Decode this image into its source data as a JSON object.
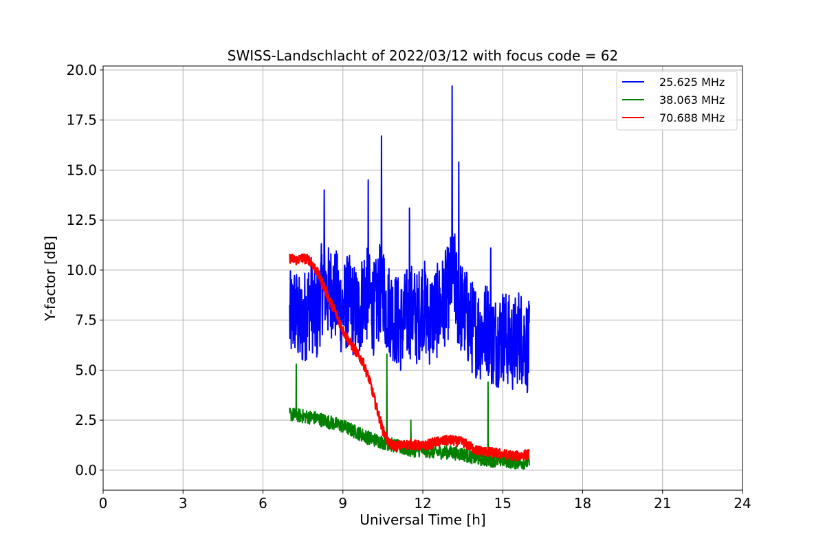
{
  "chart_data": {
    "type": "line",
    "title": "SWISS-Landschlacht of 2022/03/12 with focus code = 62",
    "xlabel": "Universal Time [h]",
    "ylabel": "Y-factor [dB]",
    "xlim": [
      0,
      24
    ],
    "ylim": [
      -1.0,
      20.2
    ],
    "xticks": [
      0,
      3,
      6,
      9,
      12,
      15,
      18,
      21,
      24
    ],
    "xtick_labels": [
      "0",
      "3",
      "6",
      "9",
      "12",
      "15",
      "18",
      "21",
      "24"
    ],
    "yticks": [
      0.0,
      2.5,
      5.0,
      7.5,
      10.0,
      12.5,
      15.0,
      17.5,
      20.0
    ],
    "ytick_labels": [
      "0.0",
      "2.5",
      "5.0",
      "7.5",
      "10.0",
      "12.5",
      "15.0",
      "17.5",
      "20.0"
    ],
    "grid": true,
    "legend_position": "top-right",
    "series": [
      {
        "name": "25.625 MHz",
        "color": "#0000ff",
        "x": [
          7.0,
          7.2,
          7.4,
          7.6,
          7.8,
          8.0,
          8.2,
          8.3,
          8.4,
          8.6,
          8.8,
          9.0,
          9.2,
          9.4,
          9.6,
          9.8,
          10.0,
          10.2,
          10.4,
          10.5,
          10.6,
          10.8,
          11.0,
          11.2,
          11.4,
          11.6,
          11.8,
          12.0,
          12.2,
          12.4,
          12.6,
          12.8,
          13.0,
          13.1,
          13.2,
          13.3,
          13.4,
          13.6,
          13.8,
          14.0,
          14.2,
          14.4,
          14.5,
          14.6,
          14.8,
          15.0,
          15.2,
          15.4,
          15.6,
          15.8,
          16.0
        ],
        "y": [
          7.5,
          8.0,
          7.2,
          7.8,
          8.5,
          7.5,
          9.0,
          9.5,
          8.8,
          9.0,
          8.5,
          8.0,
          8.5,
          8.0,
          7.8,
          9.0,
          8.5,
          8.0,
          9.0,
          9.5,
          8.2,
          8.0,
          7.5,
          7.2,
          7.8,
          8.0,
          7.5,
          8.5,
          7.5,
          7.8,
          8.0,
          8.5,
          9.0,
          10.0,
          9.5,
          8.5,
          8.2,
          7.8,
          7.2,
          7.0,
          6.8,
          7.2,
          7.0,
          6.5,
          6.5,
          6.8,
          6.5,
          6.2,
          6.8,
          6.5,
          6.0
        ],
        "spikes": [
          {
            "x": 8.3,
            "y": 14.0
          },
          {
            "x": 9.95,
            "y": 14.5
          },
          {
            "x": 10.45,
            "y": 16.7
          },
          {
            "x": 11.5,
            "y": 13.1
          },
          {
            "x": 13.1,
            "y": 19.2
          },
          {
            "x": 13.35,
            "y": 15.4
          },
          {
            "x": 14.55,
            "y": 11.1
          }
        ]
      },
      {
        "name": "38.063 MHz",
        "color": "#008000",
        "x": [
          7.0,
          7.5,
          8.0,
          8.5,
          9.0,
          9.5,
          10.0,
          10.5,
          11.0,
          11.5,
          12.0,
          12.5,
          13.0,
          13.5,
          14.0,
          14.5,
          15.0,
          15.5,
          16.0
        ],
        "y": [
          2.8,
          2.7,
          2.6,
          2.4,
          2.2,
          1.9,
          1.6,
          1.4,
          1.2,
          1.0,
          1.0,
          0.9,
          0.9,
          0.8,
          0.6,
          0.5,
          0.5,
          0.4,
          0.4
        ],
        "spikes": [
          {
            "x": 7.25,
            "y": 5.3
          },
          {
            "x": 10.65,
            "y": 5.8
          },
          {
            "x": 11.55,
            "y": 2.5
          },
          {
            "x": 14.45,
            "y": 4.4
          }
        ]
      },
      {
        "name": "70.688 MHz",
        "color": "#ff0000",
        "x": [
          7.0,
          7.25,
          7.5,
          7.75,
          8.0,
          8.25,
          8.5,
          8.75,
          9.0,
          9.25,
          9.5,
          9.75,
          10.0,
          10.25,
          10.5,
          10.75,
          11.0,
          11.5,
          12.0,
          12.5,
          13.0,
          13.5,
          14.0,
          14.5,
          15.0,
          15.5,
          16.0
        ],
        "y": [
          10.6,
          10.5,
          10.6,
          10.5,
          10.0,
          9.3,
          8.5,
          7.8,
          7.0,
          6.4,
          5.9,
          5.4,
          4.5,
          3.2,
          2.0,
          1.3,
          1.2,
          1.3,
          1.2,
          1.4,
          1.5,
          1.4,
          1.0,
          0.9,
          0.8,
          0.7,
          0.8
        ]
      }
    ]
  }
}
